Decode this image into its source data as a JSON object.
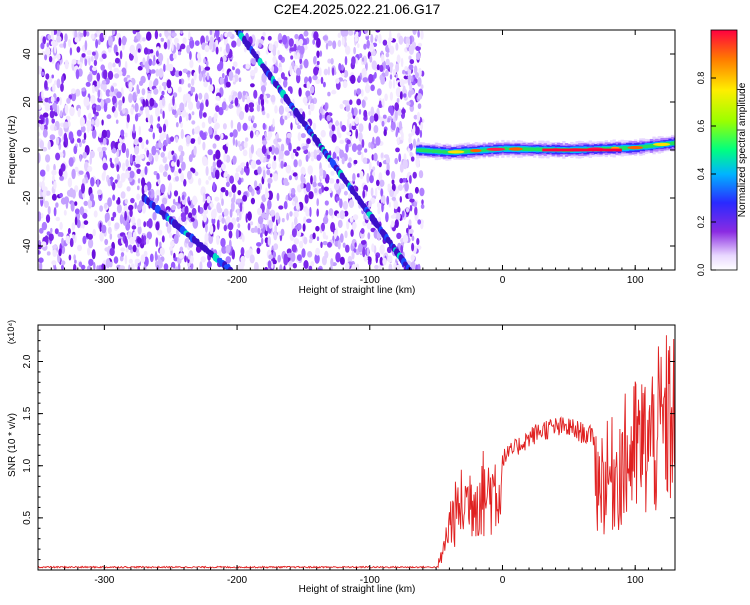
{
  "chart_data": [
    {
      "type": "heatmap",
      "title": "C2E4.2025.022.21.06.G17",
      "xlabel": "Height of straight line (km)",
      "ylabel": "Frequency (Hz)",
      "xlim": [
        -350,
        130
      ],
      "ylim": [
        -50,
        50
      ],
      "xticks": [
        -300,
        -200,
        -100,
        0,
        100
      ],
      "yticks": [
        -40,
        -20,
        0,
        20,
        40
      ],
      "colorbar": {
        "label": "Normalized spectral amplitude",
        "range": [
          0,
          1
        ],
        "ticks": [
          "0.0",
          "0.2",
          "0.4",
          "0.6",
          "0.8"
        ]
      },
      "features": {
        "noise_region_x": [
          -350,
          -60
        ],
        "diagonal_track_main": [
          [
            -200,
            50
          ],
          [
            -70,
            -50
          ]
        ],
        "diagonal_track_lower": [
          [
            -270,
            -20
          ],
          [
            -205,
            -50
          ]
        ],
        "signal_line": [
          [
            -65,
            0
          ],
          [
            -40,
            -1
          ],
          [
            0,
            0.5
          ],
          [
            50,
            0
          ],
          [
            100,
            1
          ],
          [
            130,
            3
          ]
        ]
      }
    },
    {
      "type": "line",
      "xlabel": "Height of straight line (km)",
      "ylabel": "SNR (10 * v/v)",
      "yscale_note": "(x10⁴)",
      "xlim": [
        -350,
        130
      ],
      "ylim": [
        0,
        2.35
      ],
      "xticks": [
        -300,
        -200,
        -100,
        0,
        100
      ],
      "yticks": [
        "0.5",
        "1.0",
        "1.5",
        "2.0"
      ],
      "series": [
        {
          "color": "#e02020",
          "x": [
            -350,
            -100,
            -50,
            -45,
            -40,
            -30,
            -20,
            -10,
            0,
            10,
            20,
            30,
            40,
            50,
            60,
            70,
            80,
            90,
            100,
            110,
            120,
            128
          ],
          "y": [
            0.02,
            0.02,
            0.03,
            0.2,
            0.6,
            0.85,
            0.95,
            1.0,
            1.1,
            1.2,
            1.3,
            1.38,
            1.4,
            1.4,
            1.35,
            1.3,
            1.3,
            1.5,
            1.7,
            1.8,
            2.0,
            2.2
          ]
        }
      ]
    }
  ]
}
